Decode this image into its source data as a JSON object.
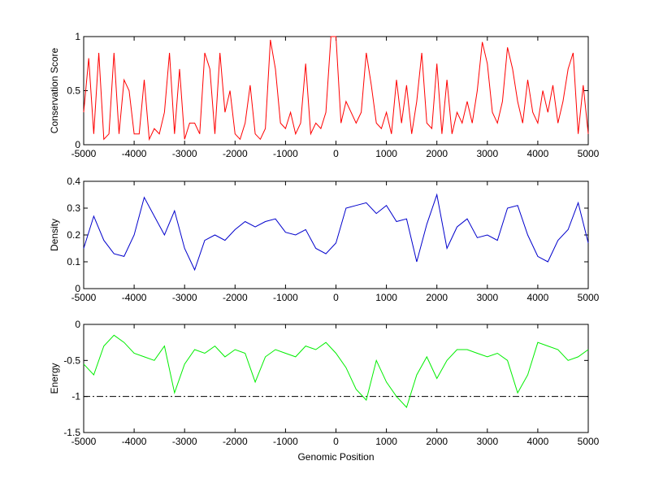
{
  "chart_data": [
    {
      "type": "line",
      "ylabel": "Conservation Score",
      "xlim": [
        -5000,
        5000
      ],
      "xticks": [
        -5000,
        -4000,
        -3000,
        -2000,
        -1000,
        0,
        1000,
        2000,
        3000,
        4000,
        5000
      ],
      "ylim": [
        0,
        1
      ],
      "yticks": [
        0,
        0.5,
        1
      ],
      "series": [
        {
          "color": "#ff0000",
          "x": [
            -5000,
            -4900,
            -4800,
            -4700,
            -4600,
            -4500,
            -4400,
            -4300,
            -4200,
            -4100,
            -4000,
            -3900,
            -3800,
            -3700,
            -3600,
            -3500,
            -3400,
            -3300,
            -3200,
            -3100,
            -3000,
            -2900,
            -2800,
            -2700,
            -2600,
            -2500,
            -2400,
            -2300,
            -2200,
            -2100,
            -2000,
            -1900,
            -1800,
            -1700,
            -1600,
            -1500,
            -1400,
            -1300,
            -1200,
            -1100,
            -1000,
            -900,
            -800,
            -700,
            -600,
            -500,
            -400,
            -300,
            -200,
            -100,
            0,
            100,
            200,
            300,
            400,
            500,
            600,
            700,
            800,
            900,
            1000,
            1100,
            1200,
            1300,
            1400,
            1500,
            1600,
            1700,
            1800,
            1900,
            2000,
            2100,
            2200,
            2300,
            2400,
            2500,
            2600,
            2700,
            2800,
            2900,
            3000,
            3100,
            3200,
            3300,
            3400,
            3500,
            3600,
            3700,
            3800,
            3900,
            4000,
            4100,
            4200,
            4300,
            4400,
            4500,
            4600,
            4700,
            4800,
            4900,
            5000
          ],
          "values": [
            0.3,
            0.8,
            0.1,
            0.85,
            0.05,
            0.1,
            0.85,
            0.1,
            0.6,
            0.5,
            0.1,
            0.1,
            0.6,
            0.05,
            0.15,
            0.1,
            0.3,
            0.85,
            0.1,
            0.7,
            0.05,
            0.2,
            0.2,
            0.1,
            0.85,
            0.7,
            0.1,
            0.85,
            0.3,
            0.5,
            0.1,
            0.05,
            0.2,
            0.55,
            0.1,
            0.05,
            0.15,
            0.97,
            0.7,
            0.2,
            0.15,
            0.3,
            0.1,
            0.2,
            0.75,
            0.1,
            0.2,
            0.15,
            0.3,
            1,
            1,
            0.2,
            0.4,
            0.3,
            0.2,
            0.3,
            0.85,
            0.55,
            0.2,
            0.15,
            0.3,
            0.1,
            0.6,
            0.2,
            0.55,
            0.1,
            0.4,
            0.85,
            0.2,
            0.15,
            0.75,
            0.1,
            0.6,
            0.1,
            0.3,
            0.2,
            0.4,
            0.2,
            0.5,
            0.95,
            0.75,
            0.3,
            0.2,
            0.4,
            0.9,
            0.7,
            0.4,
            0.2,
            0.6,
            0.3,
            0.2,
            0.5,
            0.3,
            0.55,
            0.2,
            0.4,
            0.7,
            0.85,
            0.1,
            0.55,
            0.1
          ]
        }
      ]
    },
    {
      "type": "line",
      "ylabel": "Density",
      "xlim": [
        -5000,
        5000
      ],
      "xticks": [
        -5000,
        -4000,
        -3000,
        -2000,
        -1000,
        0,
        1000,
        2000,
        3000,
        4000,
        5000
      ],
      "ylim": [
        0,
        0.4
      ],
      "yticks": [
        0,
        0.1,
        0.2,
        0.3,
        0.4
      ],
      "series": [
        {
          "color": "#0000cc",
          "x": [
            -5000,
            -4800,
            -4600,
            -4400,
            -4200,
            -4000,
            -3800,
            -3600,
            -3400,
            -3200,
            -3000,
            -2800,
            -2600,
            -2400,
            -2200,
            -2000,
            -1800,
            -1600,
            -1400,
            -1200,
            -1000,
            -800,
            -600,
            -400,
            -200,
            0,
            200,
            400,
            600,
            800,
            1000,
            1200,
            1400,
            1600,
            1800,
            2000,
            2200,
            2400,
            2600,
            2800,
            3000,
            3200,
            3400,
            3600,
            3800,
            4000,
            4200,
            4400,
            4600,
            4800,
            5000
          ],
          "values": [
            0.15,
            0.27,
            0.18,
            0.13,
            0.12,
            0.2,
            0.34,
            0.27,
            0.2,
            0.29,
            0.15,
            0.07,
            0.18,
            0.2,
            0.18,
            0.22,
            0.25,
            0.23,
            0.25,
            0.26,
            0.21,
            0.2,
            0.22,
            0.15,
            0.13,
            0.17,
            0.3,
            0.31,
            0.32,
            0.28,
            0.31,
            0.25,
            0.26,
            0.1,
            0.24,
            0.35,
            0.15,
            0.23,
            0.26,
            0.19,
            0.2,
            0.18,
            0.3,
            0.31,
            0.2,
            0.12,
            0.1,
            0.18,
            0.22,
            0.32,
            0.17
          ]
        }
      ]
    },
    {
      "type": "line",
      "ylabel": "Energy",
      "xlabel": "Genomic Position",
      "xlim": [
        -5000,
        5000
      ],
      "xticks": [
        -5000,
        -4000,
        -3000,
        -2000,
        -1000,
        0,
        1000,
        2000,
        3000,
        4000,
        5000
      ],
      "ylim": [
        -1.5,
        0
      ],
      "yticks": [
        -1.5,
        -1,
        -0.5,
        0
      ],
      "hline": -1,
      "series": [
        {
          "color": "#00ee00",
          "x": [
            -5000,
            -4800,
            -4600,
            -4400,
            -4200,
            -4000,
            -3800,
            -3600,
            -3400,
            -3200,
            -3000,
            -2800,
            -2600,
            -2400,
            -2200,
            -2000,
            -1800,
            -1600,
            -1400,
            -1200,
            -1000,
            -800,
            -600,
            -400,
            -200,
            0,
            200,
            400,
            600,
            800,
            1000,
            1200,
            1400,
            1600,
            1800,
            2000,
            2200,
            2400,
            2600,
            2800,
            3000,
            3200,
            3400,
            3600,
            3800,
            4000,
            4200,
            4400,
            4600,
            4800,
            5000
          ],
          "values": [
            -0.55,
            -0.7,
            -0.3,
            -0.15,
            -0.25,
            -0.4,
            -0.45,
            -0.5,
            -0.3,
            -0.95,
            -0.55,
            -0.35,
            -0.4,
            -0.3,
            -0.45,
            -0.35,
            -0.4,
            -0.8,
            -0.45,
            -0.35,
            -0.4,
            -0.45,
            -0.3,
            -0.35,
            -0.25,
            -0.4,
            -0.6,
            -0.9,
            -1.05,
            -0.5,
            -0.8,
            -1.0,
            -1.15,
            -0.7,
            -0.45,
            -0.75,
            -0.5,
            -0.35,
            -0.35,
            -0.4,
            -0.45,
            -0.4,
            -0.5,
            -0.95,
            -0.7,
            -0.25,
            -0.3,
            -0.35,
            -0.5,
            -0.45,
            -0.35
          ]
        }
      ]
    }
  ]
}
